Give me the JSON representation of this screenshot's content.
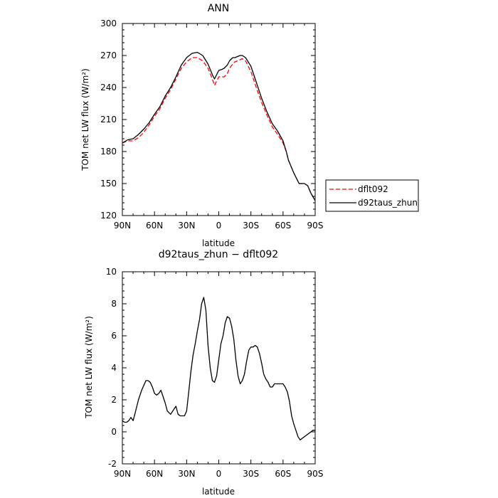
{
  "chart_data": [
    {
      "type": "line",
      "title": "ANN",
      "xlabel": "latitude",
      "ylabel": "TOM net LW flux (W/m²)",
      "xlim": [
        90,
        -90
      ],
      "ylim": [
        120,
        300
      ],
      "xticks": [
        90,
        60,
        30,
        0,
        -30,
        -60,
        -90
      ],
      "xticklabels": [
        "90N",
        "60N",
        "30N",
        "0",
        "30S",
        "60S",
        "90S"
      ],
      "yticks": [
        120,
        150,
        180,
        210,
        240,
        270,
        300
      ],
      "legend": "outside-right",
      "series": [
        {
          "name": "dflt092",
          "color": "#ff0000",
          "dash": "dashed",
          "x": [
            90,
            85,
            80,
            75,
            70,
            65,
            60,
            55,
            50,
            45,
            40,
            35,
            30,
            25,
            20,
            15,
            10,
            6,
            4,
            2,
            0,
            -3,
            -5,
            -8,
            -10,
            -13,
            -15,
            -20,
            -22,
            -25,
            -30,
            -35,
            -40,
            -45,
            -50,
            -55,
            -60,
            -63,
            -65,
            -70,
            -75,
            -77,
            -80,
            -83,
            -86,
            -90
          ],
          "y": [
            188,
            190,
            190,
            193,
            198,
            205,
            213,
            220,
            230,
            238,
            248,
            258,
            264,
            268,
            268,
            265,
            258,
            248,
            242,
            246,
            250,
            250,
            250,
            253,
            258,
            262,
            264,
            266,
            267,
            265,
            255,
            240,
            226,
            214,
            203,
            196,
            188,
            180,
            172,
            160,
            150,
            150,
            150,
            148,
            141,
            134
          ]
        },
        {
          "name": "d92taus_zhun",
          "color": "#000000",
          "dash": "solid",
          "x": [
            90,
            85,
            80,
            75,
            70,
            65,
            60,
            55,
            50,
            45,
            40,
            35,
            30,
            25,
            20,
            15,
            10,
            6,
            4,
            2,
            0,
            -3,
            -5,
            -8,
            -10,
            -13,
            -15,
            -20,
            -22,
            -25,
            -30,
            -35,
            -40,
            -45,
            -50,
            -55,
            -60,
            -63,
            -65,
            -70,
            -75,
            -77,
            -80,
            -83,
            -86,
            -90
          ],
          "y": [
            188,
            191,
            192,
            196,
            201,
            207,
            215,
            222,
            232,
            240,
            250,
            261,
            268,
            272,
            273,
            270,
            262,
            252,
            248,
            252,
            256,
            257,
            258,
            261,
            265,
            268,
            268,
            270,
            270,
            268,
            260,
            245,
            230,
            217,
            206,
            199,
            190,
            180,
            172,
            160,
            150,
            150,
            150,
            148,
            141,
            134
          ]
        }
      ]
    },
    {
      "type": "line",
      "title": "d92taus_zhun − dflt092",
      "xlabel": "latitude",
      "ylabel": "TOM net LW flux (W/m²)",
      "xlim": [
        90,
        -90
      ],
      "ylim": [
        -2,
        10
      ],
      "xticks": [
        90,
        60,
        30,
        0,
        -30,
        -60,
        -90
      ],
      "xticklabels": [
        "90N",
        "60N",
        "30N",
        "0",
        "30S",
        "60S",
        "90S"
      ],
      "yticks": [
        -2,
        0,
        2,
        4,
        6,
        8,
        10
      ],
      "series": [
        {
          "color": "#000000",
          "dash": "solid",
          "x": [
            90,
            88,
            86,
            84,
            82,
            80,
            78,
            75,
            72,
            70,
            68,
            66,
            64,
            62,
            60,
            58,
            56,
            54,
            52,
            50,
            48,
            45,
            42,
            40,
            38,
            36,
            34,
            32,
            30,
            28,
            26,
            24,
            22,
            20,
            18,
            16,
            14,
            12,
            10,
            8,
            6,
            4,
            2,
            0,
            -2,
            -4,
            -6,
            -8,
            -10,
            -12,
            -14,
            -16,
            -18,
            -20,
            -22,
            -24,
            -26,
            -28,
            -30,
            -32,
            -34,
            -36,
            -38,
            -40,
            -42,
            -44,
            -46,
            -48,
            -50,
            -52,
            -54,
            -56,
            -58,
            -60,
            -62,
            -64,
            -66,
            -68,
            -70,
            -72,
            -74,
            -76,
            -78,
            -80,
            -82,
            -84,
            -86,
            -88,
            -90
          ],
          "y": [
            0.7,
            0.6,
            0.6,
            0.7,
            0.9,
            0.7,
            1.2,
            2.0,
            2.6,
            2.9,
            3.2,
            3.2,
            3.1,
            2.8,
            2.4,
            2.3,
            2.4,
            2.6,
            2.2,
            1.8,
            1.3,
            1.1,
            1.4,
            1.6,
            1.1,
            1.0,
            1.0,
            1.0,
            1.3,
            2.5,
            3.8,
            4.8,
            5.5,
            6.3,
            7.0,
            8.0,
            8.4,
            7.6,
            5.4,
            4.0,
            3.2,
            3.1,
            3.5,
            4.5,
            5.5,
            6.0,
            6.8,
            7.2,
            7.1,
            6.6,
            5.8,
            4.5,
            3.5,
            3.0,
            3.2,
            3.6,
            4.4,
            5.1,
            5.3,
            5.3,
            5.4,
            5.3,
            4.9,
            4.3,
            3.6,
            3.3,
            3.1,
            2.8,
            2.8,
            3.0,
            3.0,
            3.0,
            3.0,
            3.0,
            2.8,
            2.5,
            1.9,
            1.0,
            0.5,
            0.1,
            -0.3,
            -0.5,
            -0.4,
            -0.3,
            -0.2,
            -0.1,
            0.0,
            0.1,
            0.1
          ]
        }
      ]
    }
  ]
}
